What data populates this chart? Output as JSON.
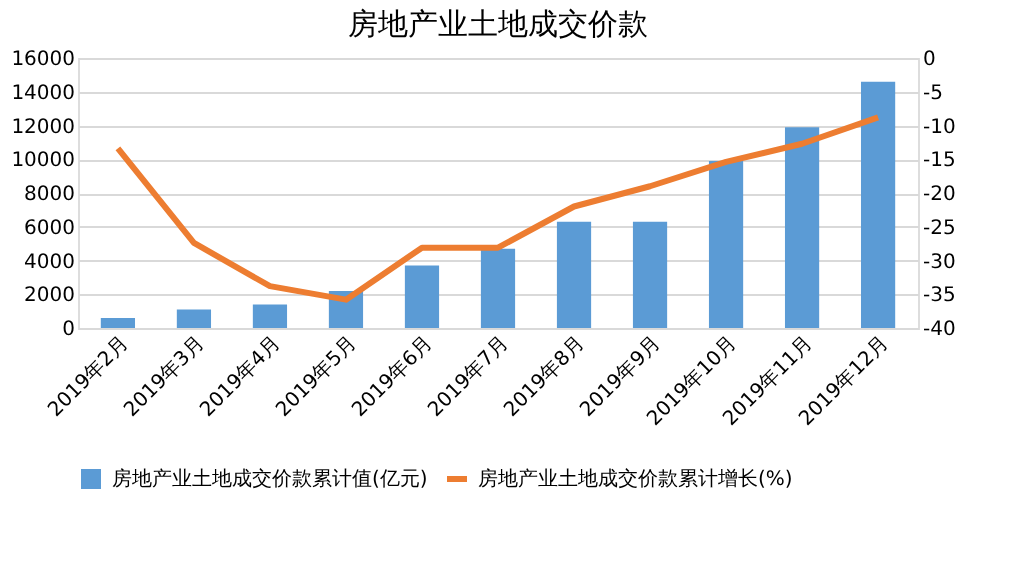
{
  "chart_data": {
    "type": "bar",
    "title": "房地产业土地成交价款",
    "categories": [
      "2019年2月",
      "2019年3月",
      "2019年4月",
      "2019年5月",
      "2019年6月",
      "2019年7月",
      "2019年8月",
      "2019年9月",
      "2019年10月",
      "2019年11月",
      "2019年12月"
    ],
    "series": [
      {
        "name": "房地产业土地成交价款累计值(亿元)",
        "color": "#5b9bd5",
        "values": [
          600,
          1100,
          1400,
          2200,
          3700,
          4700,
          6300,
          6300,
          9900,
          11900,
          14600
        ]
      },
      {
        "name": "房地产业土地成交价款累计增长(%)",
        "type": "line",
        "axis": "y2",
        "color": "#ed7d31",
        "values": [
          -13.4,
          -27.4,
          -33.8,
          -35.8,
          -28.1,
          -28.1,
          -22,
          -19,
          -15.4,
          -12.7,
          -8.8
        ]
      }
    ],
    "ylim": [
      0,
      16000
    ],
    "yticks": [
      0,
      2000,
      4000,
      6000,
      8000,
      10000,
      12000,
      14000,
      16000
    ],
    "y2lim": [
      -40,
      0
    ],
    "y2ticks": [
      -40,
      -35,
      -30,
      -25,
      -20,
      -15,
      -10,
      -5,
      0
    ],
    "grid": "y",
    "legend": "bottom",
    "marker": "none",
    "line_style": "solid"
  }
}
